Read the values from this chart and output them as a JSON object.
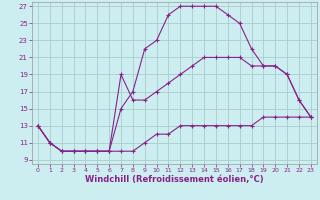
{
  "xlabel": "Windchill (Refroidissement éolien,°C)",
  "bg_color": "#cceef0",
  "grid_color": "#aacccc",
  "line_color": "#882288",
  "xlim": [
    -0.5,
    23.5
  ],
  "ylim": [
    8.5,
    27.5
  ],
  "xticks": [
    0,
    1,
    2,
    3,
    4,
    5,
    6,
    7,
    8,
    9,
    10,
    11,
    12,
    13,
    14,
    15,
    16,
    17,
    18,
    19,
    20,
    21,
    22,
    23
  ],
  "yticks": [
    9,
    11,
    13,
    15,
    17,
    19,
    21,
    23,
    25,
    27
  ],
  "line1_x": [
    0,
    1,
    2,
    3,
    4,
    5,
    6,
    7,
    8,
    9,
    10,
    11,
    12,
    13,
    14,
    15,
    16,
    17,
    18,
    19,
    20,
    21,
    22,
    23
  ],
  "line1_y": [
    13,
    11,
    10,
    10,
    10,
    10,
    10,
    15,
    17,
    22,
    23,
    26,
    27,
    27,
    27,
    27,
    26,
    25,
    22,
    20,
    20,
    19,
    16,
    14
  ],
  "line2_x": [
    0,
    1,
    2,
    3,
    4,
    5,
    6,
    7,
    8,
    9,
    10,
    11,
    12,
    13,
    14,
    15,
    16,
    17,
    18,
    19,
    20,
    21,
    22,
    23
  ],
  "line2_y": [
    13,
    11,
    10,
    10,
    10,
    10,
    10,
    10,
    10,
    11,
    12,
    12,
    13,
    13,
    13,
    13,
    13,
    13,
    13,
    14,
    14,
    14,
    14,
    14
  ],
  "line3_x": [
    0,
    1,
    2,
    3,
    4,
    5,
    6,
    7,
    8,
    9,
    10,
    11,
    12,
    13,
    14,
    15,
    16,
    17,
    18,
    19,
    20,
    21,
    22,
    23
  ],
  "line3_y": [
    13,
    11,
    10,
    10,
    10,
    10,
    10,
    19,
    16,
    16,
    17,
    18,
    19,
    20,
    21,
    21,
    21,
    21,
    20,
    20,
    20,
    19,
    16,
    14
  ],
  "xlabel_fontsize": 6,
  "tick_fontsize": 5.5
}
